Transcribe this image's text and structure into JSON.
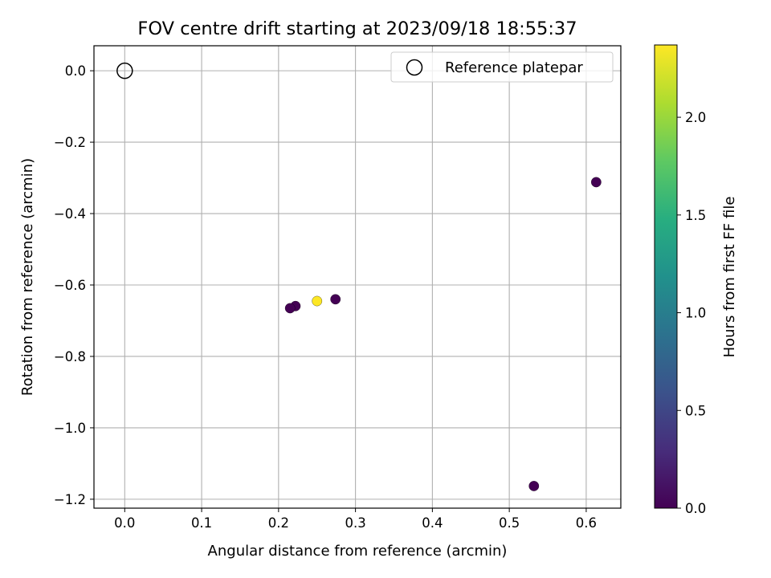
{
  "chart_data": {
    "type": "scatter",
    "title": "FOV centre drift starting at 2023/09/18 18:55:37",
    "xlabel": "Angular distance from reference (arcmin)",
    "ylabel": "Rotation from reference (arcmin)",
    "xlim": [
      -0.04,
      0.645
    ],
    "ylim": [
      -1.225,
      0.07
    ],
    "xticks": [
      0.0,
      0.1,
      0.2,
      0.3,
      0.4,
      0.5,
      0.6
    ],
    "xtick_labels": [
      "0.0",
      "0.1",
      "0.2",
      "0.3",
      "0.4",
      "0.5",
      "0.6"
    ],
    "yticks": [
      0.0,
      -0.2,
      -0.4,
      -0.6,
      -0.8,
      -1.0,
      -1.2
    ],
    "ytick_labels": [
      "0.0",
      "−0.2",
      "−0.4",
      "−0.6",
      "−0.8",
      "−1.0",
      "−1.2"
    ],
    "grid": true,
    "legend": {
      "position": "top-right",
      "entries": [
        "Reference platepar"
      ]
    },
    "reference_point": {
      "x": 0.0,
      "y": 0.0,
      "name": "Reference platepar"
    },
    "points": [
      {
        "x": 0.613,
        "y": -0.312,
        "hours": 0.0
      },
      {
        "x": 0.532,
        "y": -1.163,
        "hours": 0.0
      },
      {
        "x": 0.274,
        "y": -0.64,
        "hours": 0.0
      },
      {
        "x": 0.222,
        "y": -0.659,
        "hours": 0.0
      },
      {
        "x": 0.215,
        "y": -0.665,
        "hours": 0.0
      },
      {
        "x": 0.25,
        "y": -0.645,
        "hours": 2.37
      }
    ],
    "colorbar": {
      "label": "Hours from first FF file",
      "range": [
        0.0,
        2.37
      ],
      "colormap": "viridis",
      "ticks": [
        0.0,
        0.5,
        1.0,
        1.5,
        2.0
      ],
      "tick_labels": [
        "0.0",
        "0.5",
        "1.0",
        "1.5",
        "2.0"
      ]
    }
  }
}
